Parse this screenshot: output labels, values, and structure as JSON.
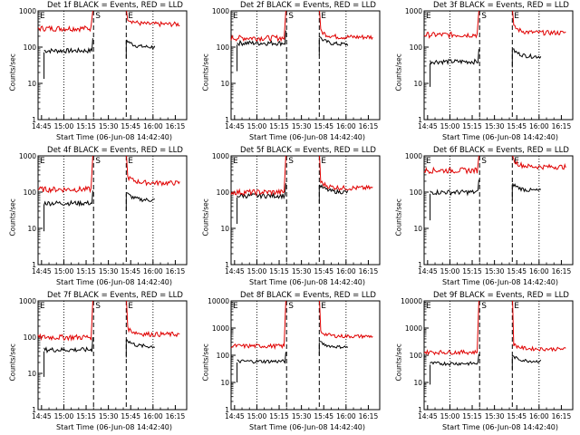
{
  "chart_data": [
    {
      "type": "line",
      "title": "Det 1f BLACK = Events, RED = LLD",
      "xlabel": "Start Time (06-Jun-08 14:42:40)",
      "ylabel": "Counts/sec",
      "x_ticks": [
        "14:45",
        "15:00",
        "15:15",
        "15:30",
        "15:45",
        "16:00",
        "16:15"
      ],
      "y_ticks": [
        "1",
        "10",
        "100",
        "1000"
      ],
      "ylim": [
        1,
        1000
      ],
      "yscale": "log",
      "markers": [
        {
          "label": "E",
          "x": "14:42:40"
        },
        {
          "label": "S",
          "x": "15:20:00"
        },
        {
          "label": "E",
          "x": "15:42:00"
        }
      ],
      "series": [
        {
          "name": "Events",
          "color": "#000000",
          "levels": [
            80,
            null,
            100
          ]
        },
        {
          "name": "LLD",
          "color": "#e00000",
          "levels": [
            330,
            null,
            430
          ]
        }
      ]
    },
    {
      "type": "line",
      "title": "Det 2f BLACK = Events, RED = LLD",
      "xlabel": "Start Time (06-Jun-08 14:42:40)",
      "ylabel": "Counts/sec",
      "x_ticks": [
        "14:45",
        "15:00",
        "15:15",
        "15:30",
        "15:45",
        "16:00",
        "16:15"
      ],
      "y_ticks": [
        "1",
        "10",
        "100",
        "1000"
      ],
      "ylim": [
        1,
        1000
      ],
      "yscale": "log",
      "markers": [
        {
          "label": "E",
          "x": "14:42:40"
        },
        {
          "label": "S",
          "x": "15:20:00"
        },
        {
          "label": "E",
          "x": "15:42:00"
        }
      ],
      "series": [
        {
          "name": "Events",
          "color": "#000000",
          "levels": [
            130,
            null,
            120
          ]
        },
        {
          "name": "LLD",
          "color": "#e00000",
          "levels": [
            180,
            null,
            190
          ]
        }
      ]
    },
    {
      "type": "line",
      "title": "Det 3f BLACK = Events, RED = LLD",
      "xlabel": "Start Time (06-Jun-08 14:42:40)",
      "ylabel": "Counts/sec",
      "x_ticks": [
        "14:45",
        "15:00",
        "15:15",
        "15:30",
        "15:45",
        "16:00",
        "16:15"
      ],
      "y_ticks": [
        "1",
        "10",
        "100",
        "1000"
      ],
      "ylim": [
        1,
        1000
      ],
      "yscale": "log",
      "markers": [
        {
          "label": "E",
          "x": "14:42:40"
        },
        {
          "label": "S",
          "x": "15:20:00"
        },
        {
          "label": "E",
          "x": "15:42:00"
        }
      ],
      "series": [
        {
          "name": "Events",
          "color": "#000000",
          "levels": [
            40,
            null,
            55
          ]
        },
        {
          "name": "LLD",
          "color": "#e00000",
          "levels": [
            220,
            null,
            250
          ]
        }
      ]
    },
    {
      "type": "line",
      "title": "Det 4f BLACK = Events, RED = LLD",
      "xlabel": "Start Time (06-Jun-08 14:42:40)",
      "ylabel": "Counts/sec",
      "x_ticks": [
        "14:45",
        "15:00",
        "15:15",
        "15:30",
        "15:45",
        "16:00",
        "16:15"
      ],
      "y_ticks": [
        "1",
        "10",
        "100",
        "1000"
      ],
      "ylim": [
        1,
        1000
      ],
      "yscale": "log",
      "markers": [
        {
          "label": "E",
          "x": "14:42:40"
        },
        {
          "label": "S",
          "x": "15:20:00"
        },
        {
          "label": "E",
          "x": "15:42:00"
        }
      ],
      "series": [
        {
          "name": "Events",
          "color": "#000000",
          "levels": [
            50,
            null,
            60
          ]
        },
        {
          "name": "LLD",
          "color": "#e00000",
          "levels": [
            120,
            null,
            180
          ]
        }
      ]
    },
    {
      "type": "line",
      "title": "Det 5f BLACK = Events, RED = LLD",
      "xlabel": "Start Time (06-Jun-08 14:42:40)",
      "ylabel": "Counts/sec",
      "x_ticks": [
        "14:45",
        "15:00",
        "15:15",
        "15:30",
        "15:45",
        "16:00",
        "16:15"
      ],
      "y_ticks": [
        "1",
        "10",
        "100",
        "1000"
      ],
      "ylim": [
        1,
        1000
      ],
      "yscale": "log",
      "markers": [
        {
          "label": "E",
          "x": "14:42:40"
        },
        {
          "label": "S",
          "x": "15:20:00"
        },
        {
          "label": "E",
          "x": "15:42:00"
        }
      ],
      "series": [
        {
          "name": "Events",
          "color": "#000000",
          "levels": [
            80,
            null,
            100
          ]
        },
        {
          "name": "LLD",
          "color": "#e00000",
          "levels": [
            100,
            null,
            130
          ]
        }
      ]
    },
    {
      "type": "line",
      "title": "Det 6f BLACK = Events, RED = LLD",
      "xlabel": "Start Time (06-Jun-08 14:42:40)",
      "ylabel": "Counts/sec",
      "x_ticks": [
        "14:45",
        "15:00",
        "15:15",
        "15:30",
        "15:45",
        "16:00",
        "16:15"
      ],
      "y_ticks": [
        "1",
        "10",
        "100",
        "1000"
      ],
      "ylim": [
        1,
        1000
      ],
      "yscale": "log",
      "markers": [
        {
          "label": "E",
          "x": "14:42:40"
        },
        {
          "label": "S",
          "x": "15:20:00"
        },
        {
          "label": "E",
          "x": "15:42:00"
        }
      ],
      "series": [
        {
          "name": "Events",
          "color": "#000000",
          "levels": [
            100,
            null,
            110
          ]
        },
        {
          "name": "LLD",
          "color": "#e00000",
          "levels": [
            400,
            null,
            500
          ]
        }
      ]
    },
    {
      "type": "line",
      "title": "Det 7f BLACK = Events, RED = LLD",
      "xlabel": "Start Time (06-Jun-08 14:42:40)",
      "ylabel": "Counts/sec",
      "x_ticks": [
        "14:45",
        "15:00",
        "15:15",
        "15:30",
        "15:45",
        "16:00",
        "16:15"
      ],
      "y_ticks": [
        "1",
        "10",
        "100",
        "1000"
      ],
      "ylim": [
        1,
        1000
      ],
      "yscale": "log",
      "markers": [
        {
          "label": "E",
          "x": "14:42:40"
        },
        {
          "label": "S",
          "x": "15:20:00"
        },
        {
          "label": "E",
          "x": "15:42:00"
        }
      ],
      "series": [
        {
          "name": "Events",
          "color": "#000000",
          "levels": [
            45,
            null,
            55
          ]
        },
        {
          "name": "LLD",
          "color": "#e00000",
          "levels": [
            100,
            null,
            120
          ]
        }
      ]
    },
    {
      "type": "line",
      "title": "Det 8f BLACK = Events, RED = LLD",
      "xlabel": "Start Time (06-Jun-08 14:42:40)",
      "ylabel": "Counts/sec",
      "x_ticks": [
        "14:45",
        "15:00",
        "15:15",
        "15:30",
        "15:45",
        "16:00",
        "16:15"
      ],
      "y_ticks": [
        "1",
        "10",
        "100",
        "1000",
        "10000"
      ],
      "ylim": [
        1,
        10000
      ],
      "yscale": "log",
      "markers": [
        {
          "label": "E",
          "x": "14:42:40"
        },
        {
          "label": "S",
          "x": "15:20:00"
        },
        {
          "label": "E",
          "x": "15:42:00"
        }
      ],
      "series": [
        {
          "name": "Events",
          "color": "#000000",
          "levels": [
            60,
            null,
            200
          ]
        },
        {
          "name": "LLD",
          "color": "#e00000",
          "levels": [
            220,
            null,
            500
          ]
        }
      ]
    },
    {
      "type": "line",
      "title": "Det 9f BLACK = Events, RED = LLD",
      "xlabel": "Start Time (06-Jun-08 14:42:40)",
      "ylabel": "Counts/sec",
      "x_ticks": [
        "14:45",
        "15:00",
        "15:15",
        "15:30",
        "15:45",
        "16:00",
        "16:15"
      ],
      "y_ticks": [
        "1",
        "10",
        "100",
        "1000",
        "10000"
      ],
      "ylim": [
        1,
        10000
      ],
      "yscale": "log",
      "markers": [
        {
          "label": "E",
          "x": "14:42:40"
        },
        {
          "label": "S",
          "x": "15:20:00"
        },
        {
          "label": "E",
          "x": "15:42:00"
        }
      ],
      "series": [
        {
          "name": "Events",
          "color": "#000000",
          "levels": [
            50,
            null,
            60
          ]
        },
        {
          "name": "LLD",
          "color": "#e00000",
          "levels": [
            130,
            null,
            170
          ]
        }
      ]
    }
  ]
}
